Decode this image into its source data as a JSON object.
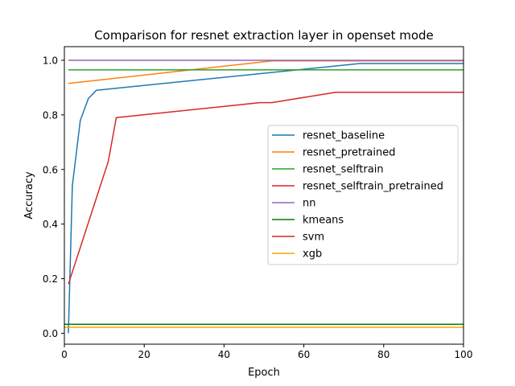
{
  "chart_data": {
    "type": "line",
    "title": "Comparison for resnet extraction layer in openset mode",
    "xlabel": "Epoch",
    "ylabel": "Accuracy",
    "xlim": [
      0,
      100
    ],
    "ylim": [
      -0.04,
      1.05
    ],
    "xticks": [
      0,
      20,
      40,
      60,
      80,
      100
    ],
    "yticks": [
      0.0,
      0.2,
      0.4,
      0.6,
      0.8,
      1.0
    ],
    "xtick_labels": [
      "0",
      "20",
      "40",
      "60",
      "80",
      "100"
    ],
    "ytick_labels": [
      "0.0",
      "0.2",
      "0.4",
      "0.6",
      "0.8",
      "1.0"
    ],
    "grid": false,
    "legend_position": "center-right",
    "series": [
      {
        "name": "resnet_baseline",
        "color": "#1f77b4",
        "x": [
          1,
          2,
          4,
          6,
          8,
          10,
          74,
          100
        ],
        "y": [
          0.0,
          0.54,
          0.78,
          0.86,
          0.89,
          0.893,
          0.988,
          0.988
        ]
      },
      {
        "name": "resnet_pretrained",
        "color": "#ff7f0e",
        "x": [
          1,
          52,
          100
        ],
        "y": [
          0.915,
          0.998,
          0.998
        ]
      },
      {
        "name": "resnet_selftrain",
        "color": "#2ca02c",
        "x": [
          1,
          100
        ],
        "y": [
          0.965,
          0.965
        ]
      },
      {
        "name": "resnet_selftrain_pretrained",
        "color": "#d62728",
        "x": [
          1,
          11,
          13,
          49,
          52,
          68,
          100
        ],
        "y": [
          0.18,
          0.63,
          0.79,
          0.845,
          0.845,
          0.883,
          0.883
        ]
      },
      {
        "name": "nn",
        "color": "#9467bd",
        "x": [
          1,
          100
        ],
        "y": [
          1.0,
          1.0
        ]
      },
      {
        "name": "kmeans",
        "color": "#008000",
        "x": [
          0,
          100
        ],
        "y": [
          0.033,
          0.033
        ]
      },
      {
        "name": "svm",
        "color": "#d62728",
        "x": [],
        "y": []
      },
      {
        "name": "xgb",
        "color": "#ffa500",
        "x": [
          0,
          100
        ],
        "y": [
          0.022,
          0.022
        ]
      }
    ]
  }
}
